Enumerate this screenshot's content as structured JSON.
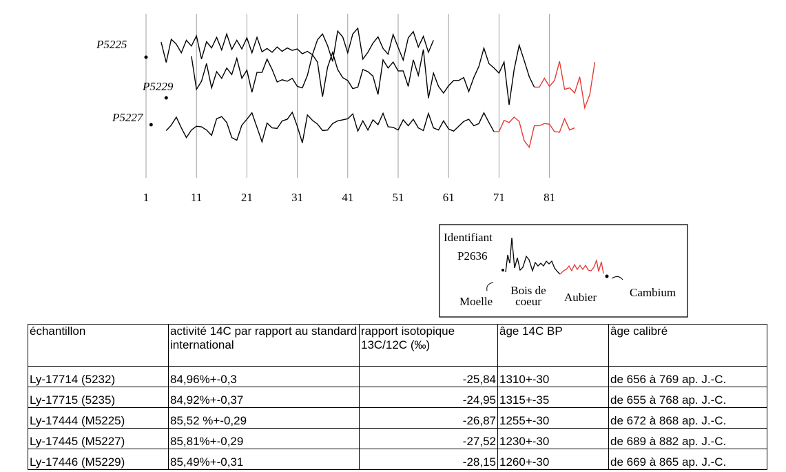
{
  "chart_data": {
    "type": "line",
    "title": "",
    "xlabel": "",
    "ylabel": "",
    "x_ticks": [
      1,
      11,
      21,
      31,
      41,
      51,
      61,
      71,
      81
    ],
    "xlim": [
      1,
      85
    ],
    "grid": "vertical",
    "colors": {
      "bois_de_coeur": "#000000",
      "aubier": "#e53935"
    },
    "series": [
      {
        "name": "P5225",
        "pith_mark": 1,
        "start": 4,
        "heartwood_values": [
          44,
          2,
          50,
          40,
          22,
          48,
          36,
          57,
          9,
          45,
          32,
          54,
          28,
          61,
          29,
          48,
          30,
          53,
          22,
          54,
          24,
          31,
          23,
          34,
          25,
          32,
          27,
          30,
          20,
          25,
          18,
          49,
          61,
          37,
          4,
          67,
          55,
          22,
          61,
          73,
          9,
          23,
          42,
          55,
          31,
          19,
          60,
          33,
          7,
          53,
          66,
          34,
          56,
          23,
          48
        ],
        "sapwood_values": []
      },
      {
        "name": "P5229",
        "pith_mark": 5,
        "start": 10,
        "heartwood_values": [
          78,
          33,
          44,
          68,
          35,
          57,
          48,
          62,
          53,
          75,
          48,
          59,
          29,
          56,
          56,
          74,
          60,
          43,
          46,
          44,
          48,
          37,
          35,
          52,
          80,
          70,
          23,
          63,
          83,
          60,
          49,
          45,
          34,
          36,
          60,
          57,
          51,
          26,
          73,
          62,
          70,
          58,
          58,
          37,
          73,
          52,
          87,
          21,
          55,
          37,
          28,
          38,
          45,
          45,
          49,
          30,
          49,
          64,
          89,
          68,
          62,
          55,
          70,
          12,
          60,
          93,
          72,
          50,
          36
        ],
        "sapwood_values": [
          36,
          48,
          37,
          45,
          71,
          33,
          35,
          28,
          50,
          8,
          26,
          70
        ]
      },
      {
        "name": "P5227",
        "pith_mark": 2,
        "start": 5,
        "heartwood_values": [
          34,
          44,
          59,
          39,
          21,
          35,
          42,
          41,
          35,
          25,
          56,
          60,
          49,
          21,
          16,
          44,
          55,
          67,
          40,
          13,
          48,
          39,
          38,
          52,
          55,
          68,
          42,
          11,
          63,
          53,
          46,
          34,
          35,
          47,
          52,
          54,
          56,
          65,
          33,
          52,
          35,
          54,
          45,
          66,
          41,
          40,
          35,
          54,
          43,
          55,
          39,
          34,
          66,
          39,
          35,
          52,
          37,
          33,
          42,
          51,
          55,
          43,
          47,
          67,
          49,
          32
        ],
        "sapwood_values": [
          32,
          53,
          49,
          59,
          51,
          15,
          3,
          43,
          43,
          47,
          46,
          32,
          31,
          56,
          35,
          39
        ]
      }
    ],
    "legend": {
      "identifiant": "Identifiant",
      "id_value": "P2636",
      "moelle": "Moelle",
      "bois_de_coeur": "Bois de coeur",
      "aubier": "Aubier",
      "cambium": "Cambium"
    }
  },
  "table": {
    "headers": [
      "échantillon",
      "activité 14C par rapport au standard international",
      "rapport isotopique 13C/12C (‰)",
      "âge 14C BP",
      "âge calibré"
    ],
    "rows": [
      [
        "Ly-17714 (5232)",
        "84,96%+-0,3",
        "-25,84",
        "1310+-30",
        "de 656 à 769 ap. J.-C."
      ],
      [
        "Ly-17715 (5235)",
        "84,92%+-0,37",
        "-24,95",
        "1315+-35",
        "de 655 à 768 ap. J.-C."
      ],
      [
        "Ly-17444 (M5225)",
        "85,52 %+-0,29",
        "-26,87",
        "1255+-30",
        "de 672 à 868 ap. J.-C."
      ],
      [
        "Ly-17445 (M5227)",
        "85,81%+-0,29",
        "-27,52",
        "1230+-30",
        "de 689 à 882 ap. J.-C."
      ],
      [
        "Ly-17446 (M5229)",
        "85,49%+-0,31",
        "-28,15",
        "1260+-30",
        "de 669 à 865 ap. J.-C."
      ]
    ]
  }
}
